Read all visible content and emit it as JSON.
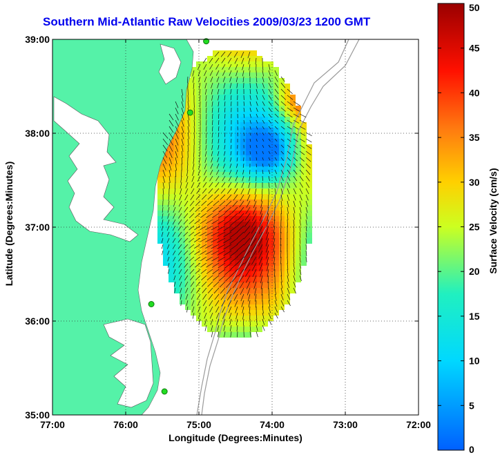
{
  "chart_data": {
    "type": "vector-field-map",
    "title": "Southern Mid-Atlantic Raw Velocities 2009/03/23 1200 GMT",
    "xlabel": "Longitude (Degrees:Minutes)",
    "ylabel": "Latitude (Degrees:Minutes)",
    "colorbar_label": "Surface Velocity (cm/s)",
    "x_ticks": [
      "77:00",
      "76:00",
      "75:00",
      "74:00",
      "73:00",
      "72:00"
    ],
    "y_ticks": [
      "39:00",
      "38:00",
      "37:00",
      "36:00",
      "35:00"
    ],
    "xlim": [
      -77,
      -72
    ],
    "ylim": [
      35,
      39
    ],
    "colorbar_ticks": [
      0,
      5,
      10,
      15,
      20,
      25,
      30,
      35,
      40,
      45,
      50
    ],
    "colorbar_range": [
      0,
      50
    ],
    "grid": true,
    "stations": [
      {
        "lon": -74.9,
        "lat": 38.98
      },
      {
        "lon": -75.12,
        "lat": 38.22
      },
      {
        "lon": -75.65,
        "lat": 36.18
      },
      {
        "lon": -75.47,
        "lat": 35.25
      }
    ],
    "colors": {
      "land": "#55f2a8",
      "title": "#0000ee",
      "station": "#22dd22"
    }
  }
}
